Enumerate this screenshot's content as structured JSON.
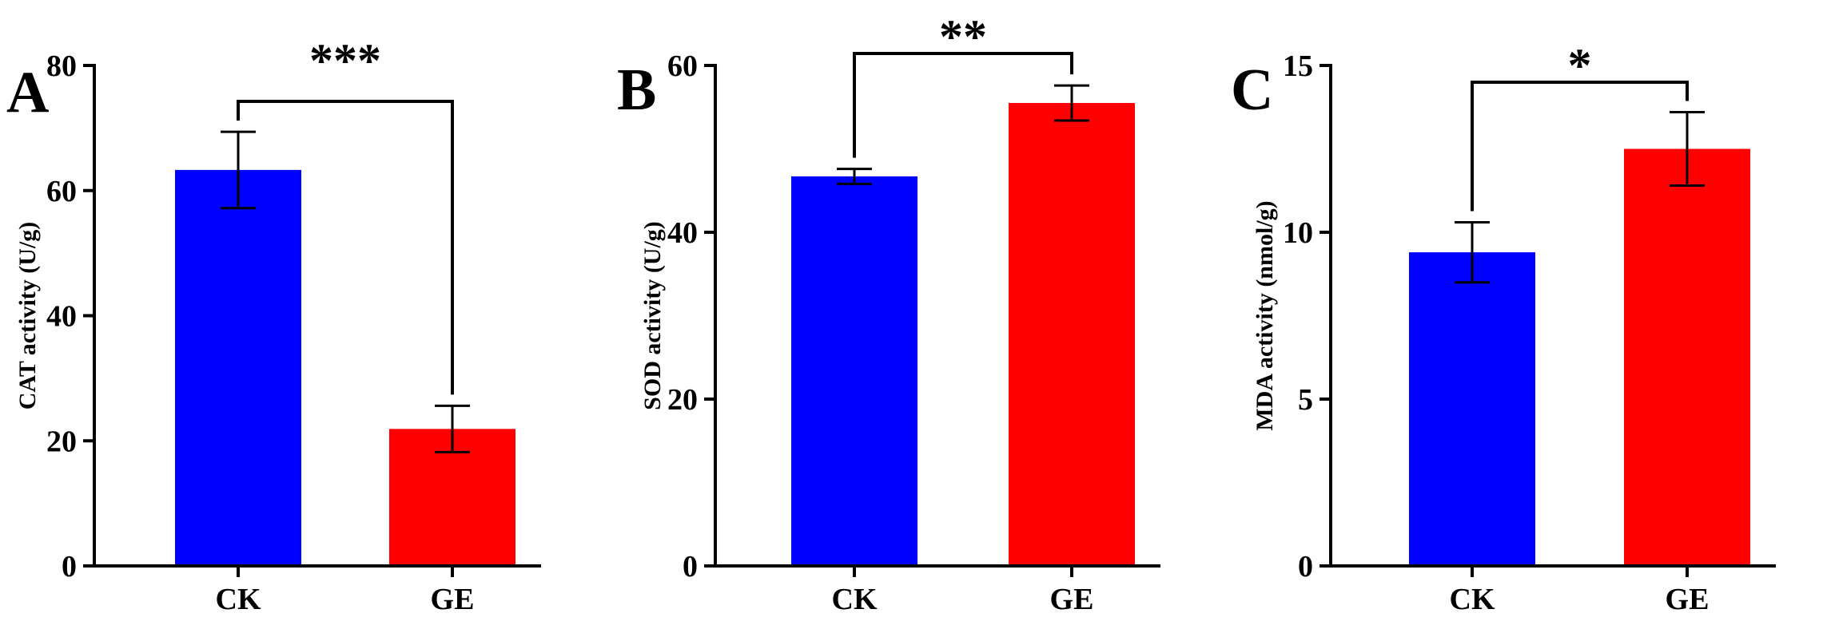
{
  "chart_data": [
    {
      "type": "bar",
      "panel": "A",
      "ylabel": "CAT activity (U/g)",
      "ylim": [
        0,
        80
      ],
      "yticks": [
        "0",
        "20",
        "40",
        "60",
        "80"
      ],
      "categories": [
        "CK",
        "GE"
      ],
      "values": [
        63.3,
        21.9
      ],
      "errors": [
        6.1,
        3.7
      ],
      "colors": [
        "#0000ff",
        "#ff0000"
      ],
      "significance": "***"
    },
    {
      "type": "bar",
      "panel": "B",
      "ylabel": "SOD activity (U/g)",
      "ylim": [
        0,
        60
      ],
      "yticks": [
        "0",
        "20",
        "40",
        "60"
      ],
      "categories": [
        "CK",
        "GE"
      ],
      "values": [
        46.7,
        55.5
      ],
      "errors": [
        0.9,
        2.1
      ],
      "colors": [
        "#0000ff",
        "#ff0000"
      ],
      "significance": "**"
    },
    {
      "type": "bar",
      "panel": "C",
      "ylabel": "MDA activity (nmol/g)",
      "ylim": [
        0,
        15
      ],
      "yticks": [
        "0",
        "5",
        "10",
        "15"
      ],
      "categories": [
        "CK",
        "GE"
      ],
      "values": [
        9.4,
        12.5
      ],
      "errors": [
        0.9,
        1.1
      ],
      "colors": [
        "#0000ff",
        "#ff0000"
      ],
      "significance": "*"
    }
  ]
}
